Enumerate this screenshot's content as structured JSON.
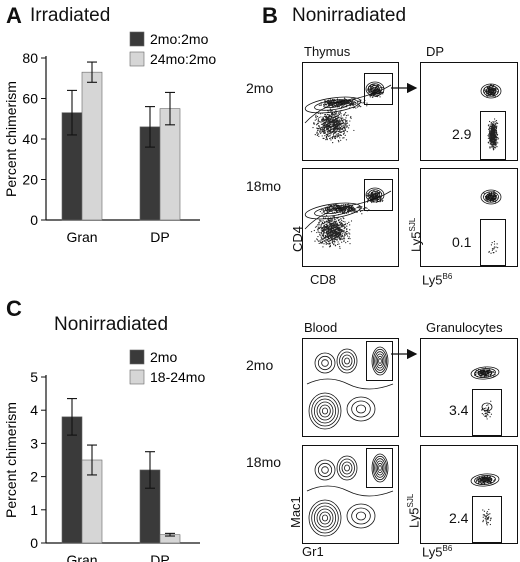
{
  "panels": {
    "A": {
      "letter": "A",
      "title": "Irradiated",
      "legend": [
        "2mo:2mo",
        "24mo:2mo"
      ]
    },
    "B": {
      "letter": "B",
      "title": "Nonirradiated",
      "thymus_label": "Thymus",
      "dp_label": "DP",
      "row1_label": "2mo",
      "row2_label": "18mo",
      "row1_value": "2.9",
      "row2_value": "0.1",
      "y_axis": "CD4",
      "x_axis": "CD8",
      "y_axis2_base": "Ly5",
      "y_axis2_sup": "SJL",
      "x_axis2_base": "Ly5",
      "x_axis2_sup": "B6"
    },
    "C": {
      "letter": "C",
      "title": "Nonirradiated",
      "legend": [
        "2mo",
        "18-24mo"
      ],
      "asterisk": "*"
    },
    "D": {
      "blood_label": "Blood",
      "gran_label": "Granulocytes",
      "row1_label": "2mo",
      "row2_label": "18mo",
      "row1_value": "3.4",
      "row2_value": "2.4",
      "y_axis": "Mac1",
      "x_axis": "Gr1",
      "y_axis2_base": "Ly5",
      "y_axis2_sup": "SJL",
      "x_axis2_base": "Ly5",
      "x_axis2_sup": "B6"
    }
  },
  "colors": {
    "dark": "#3a3a3a",
    "light": "#d6d6d6"
  },
  "chart_data": [
    {
      "type": "bar",
      "title": "Irradiated",
      "categories": [
        "Gran",
        "DP"
      ],
      "series": [
        {
          "name": "2mo:2mo",
          "values": [
            53,
            46
          ],
          "errors": [
            11,
            10
          ]
        },
        {
          "name": "24mo:2mo",
          "values": [
            73,
            55
          ],
          "errors": [
            5,
            8
          ]
        }
      ],
      "ylabel": "Percent chimerism",
      "ylim": [
        0,
        80
      ],
      "yticks": [
        0,
        20,
        40,
        60,
        80
      ]
    },
    {
      "type": "bar",
      "title": "Nonirradiated",
      "categories": [
        "Gran",
        "DP"
      ],
      "series": [
        {
          "name": "2mo",
          "values": [
            3.8,
            2.2
          ],
          "errors": [
            0.55,
            0.55
          ]
        },
        {
          "name": "18-24mo",
          "values": [
            2.5,
            0.25
          ],
          "errors": [
            0.45,
            0.04
          ]
        }
      ],
      "ylabel": "Percent chimerism",
      "ylim": [
        0,
        5
      ],
      "yticks": [
        0,
        1,
        2,
        3,
        4,
        5
      ]
    }
  ]
}
